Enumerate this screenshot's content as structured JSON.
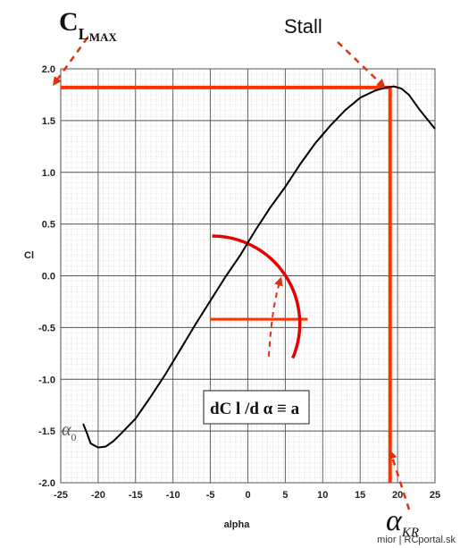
{
  "chart_data": {
    "type": "line",
    "xlabel": "alpha",
    "ylabel": "Cl",
    "xlim": [
      -25,
      25
    ],
    "ylim": [
      -2.0,
      2.0
    ],
    "xticks": [
      "-25",
      "-20",
      "-15",
      "-10",
      "-5",
      "0",
      "5",
      "10",
      "15",
      "20",
      "25"
    ],
    "yticks": [
      "2.0",
      "1.5",
      "1.0",
      "0.5",
      "0.0",
      "-0.5",
      "-1.0",
      "-1.5",
      "-2.0"
    ],
    "grid": true,
    "series": [
      {
        "x": [
          -22.0,
          -21.5,
          -21.0,
          -20.0,
          -19.0,
          -18.0,
          -17.0,
          -15.0,
          -13.0,
          -11.0,
          -9.0,
          -7.0,
          -5.0,
          -3.0,
          -1.0,
          1.0,
          3.0,
          5.0,
          7.0,
          9.0,
          11.0,
          13.0,
          15.0,
          17.0,
          18.5,
          19.5,
          20.5,
          21.5,
          23.0,
          25.0
        ],
        "y": [
          -1.43,
          -1.52,
          -1.62,
          -1.66,
          -1.65,
          -1.6,
          -1.53,
          -1.38,
          -1.17,
          -0.95,
          -0.71,
          -0.47,
          -0.24,
          -0.01,
          0.2,
          0.44,
          0.66,
          0.86,
          1.08,
          1.28,
          1.45,
          1.6,
          1.72,
          1.79,
          1.82,
          1.83,
          1.81,
          1.75,
          1.6,
          1.42
        ],
        "color": "#000000"
      }
    ],
    "annotations": {
      "clmax_label": "C",
      "clmax_sub": "L",
      "clmax_sub2": "MAX",
      "stall_label": "Stall",
      "alpha0_label": "α",
      "alpha0_sub": "0",
      "alphakr_label": "α",
      "alphakr_sub": "KR",
      "slope_formula": "dC l /d α ≡ a",
      "clmax_value": 1.82,
      "alpha_kr": 19,
      "highlight_color": "#ff3300",
      "arc_color": "#e60000"
    },
    "credit": "mior | RCportal.sk"
  }
}
